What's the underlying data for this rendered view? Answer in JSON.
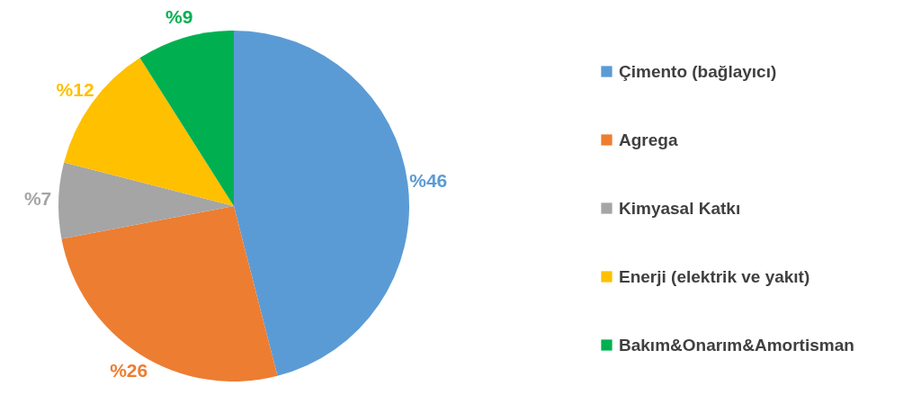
{
  "chart_data": {
    "type": "pie",
    "categories": [
      "Çimento (bağlayıcı)",
      "Agrega",
      "Kimyasal Katkı",
      "Enerji (elektrik ve yakıt)",
      "Bakım&Onarım&Amortisman"
    ],
    "values": [
      46,
      26,
      7,
      12,
      9
    ],
    "colors": [
      "#5b9bd5",
      "#ed7d31",
      "#a5a5a5",
      "#ffc000",
      "#00b050"
    ],
    "value_labels": [
      "%46",
      "%26",
      "%7",
      "%12",
      "%9"
    ],
    "legend": "right"
  }
}
